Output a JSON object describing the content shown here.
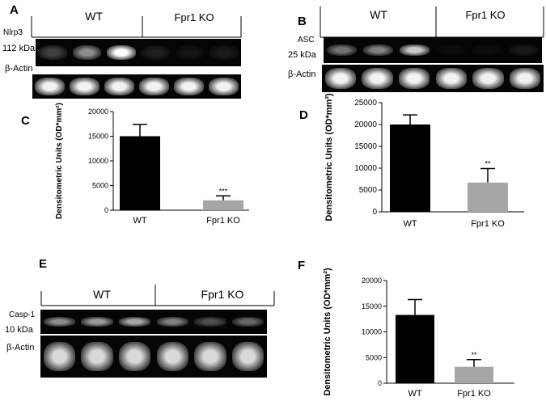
{
  "panels": [
    {
      "letter": "A",
      "groups": [
        "WT",
        "Fpr1 KO"
      ],
      "protein_label": "Nlrp3",
      "protein_kda": "112 kDa",
      "actin_label": "β-Actin",
      "protein_band_levels": [
        0.25,
        0.55,
        1.0,
        0.12,
        0.08,
        0.1
      ],
      "actin_band_levels": [
        0.95,
        0.95,
        0.95,
        0.95,
        0.95,
        0.95
      ]
    },
    {
      "letter": "B",
      "groups": [
        "WT",
        "Fpr1 KO"
      ],
      "protein_label": "ASC",
      "protein_kda": "25 kDa",
      "actin_label": "β-Actin",
      "protein_band_levels": [
        0.45,
        0.5,
        0.8,
        0.05,
        0.05,
        0.1
      ],
      "actin_band_levels": [
        0.95,
        0.95,
        0.95,
        0.95,
        0.95,
        0.95
      ]
    },
    {
      "letter": "E",
      "groups": [
        "WT",
        "Fpr1 KO"
      ],
      "protein_label": "Casp-1",
      "protein_kda": "10 kDa",
      "actin_label": "β-Actin",
      "protein_band_levels": [
        0.55,
        0.6,
        0.65,
        0.5,
        0.3,
        0.4
      ],
      "actin_band_levels": [
        0.85,
        0.85,
        0.85,
        0.85,
        0.85,
        0.85
      ]
    }
  ],
  "chart_data": [
    {
      "letter": "C",
      "type": "bar",
      "categories": [
        "WT",
        "Fpr1 KO"
      ],
      "values": [
        15000,
        2000
      ],
      "errors": [
        2400,
        900
      ],
      "significance": [
        "",
        "***"
      ],
      "bar_colors": [
        "#000000",
        "#a6a6a6"
      ],
      "ylabel": "Densitometric Units (OD*mm²)",
      "ylim": [
        0,
        20000
      ],
      "yticks": [
        0,
        5000,
        10000,
        15000,
        20000
      ]
    },
    {
      "letter": "D",
      "type": "bar",
      "categories": [
        "WT",
        "Fpr1 KO"
      ],
      "values": [
        20000,
        6700
      ],
      "errors": [
        2200,
        3200
      ],
      "significance": [
        "",
        "**"
      ],
      "bar_colors": [
        "#000000",
        "#a6a6a6"
      ],
      "ylabel": "Densitometric Units (OD*mm²)",
      "ylim": [
        0,
        25000
      ],
      "yticks": [
        0,
        5000,
        10000,
        15000,
        20000,
        25000
      ]
    },
    {
      "letter": "F",
      "type": "bar",
      "categories": [
        "WT",
        "Fpr1 KO"
      ],
      "values": [
        13300,
        3200
      ],
      "errors": [
        3000,
        1400
      ],
      "significance": [
        "",
        "**"
      ],
      "bar_colors": [
        "#000000",
        "#a6a6a6"
      ],
      "ylabel": "Densitometric Units (OD*mm²)",
      "ylim": [
        0,
        20000
      ],
      "yticks": [
        0,
        5000,
        10000,
        15000,
        20000
      ]
    }
  ]
}
